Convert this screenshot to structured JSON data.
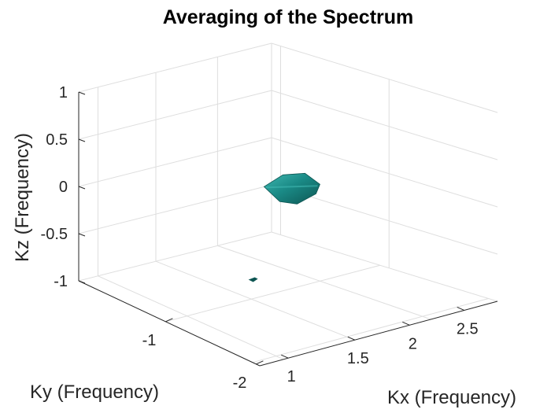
{
  "chart_data": {
    "type": "isosurface-3d",
    "title": "Averaging of the Spectrum",
    "xlabel": "Kx (Frequency)",
    "ylabel": "Ky (Frequency)",
    "zlabel": "Kz (Frequency)",
    "x_ticks": [
      "1",
      "1.5",
      "2",
      "2.5"
    ],
    "y_ticks": [
      "-2",
      "-1"
    ],
    "z_ticks": [
      "-1",
      "-0.5",
      "0",
      "0.5",
      "1"
    ],
    "grid": true,
    "surface_color": "#1a8a86",
    "surface_shadow_color": "#0d5552",
    "surface_highlight_color": "#3fb7b0",
    "blobs": [
      {
        "name": "main",
        "kx": 1.9,
        "ky": -1.3,
        "kz": 0.0
      },
      {
        "name": "small",
        "kx": 1.1,
        "ky": -1.75,
        "kz": -0.4
      }
    ]
  }
}
